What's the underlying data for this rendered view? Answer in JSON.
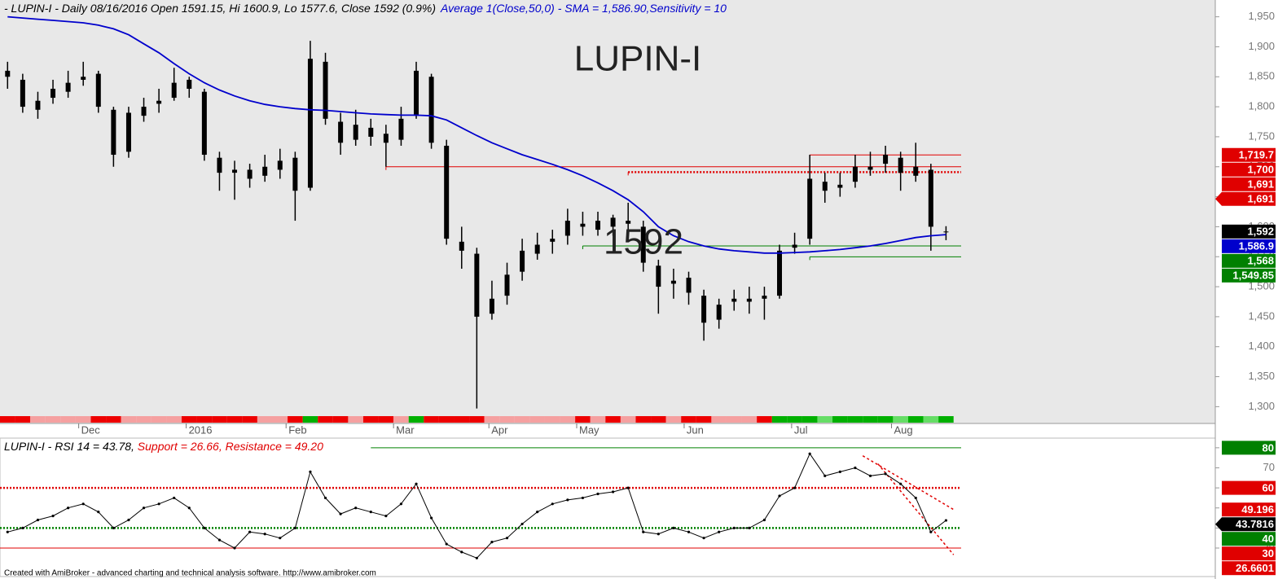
{
  "chart_data": [
    {
      "type": "candlestick",
      "header": "- LUPIN-I - Daily 08/16/2016 Open 1591.15, Hi 1600.9, Lo 1577.6, Close 1592 (0.9%)",
      "header_indicator": "Average 1(Close,50,0) - SMA = 1,586.90,Sensitivity = 10",
      "title": "LUPIN-I",
      "annotation": "1592",
      "color": "#000000",
      "open": [
        1860,
        1845,
        1795,
        1815,
        1825,
        1845,
        1855,
        1795,
        1725,
        1785,
        1805,
        1815,
        1845,
        1825,
        1715,
        1695,
        1695,
        1685,
        1695,
        1715,
        1665,
        1875,
        1775,
        1745,
        1765,
        1755,
        1745,
        1785,
        1850,
        1735,
        1575,
        1555,
        1455,
        1485,
        1525,
        1555,
        1575,
        1585,
        1605,
        1595,
        1615,
        1605,
        1600,
        1535,
        1505,
        1515,
        1485,
        1445,
        1475,
        1475,
        1485,
        1485,
        1565,
        1580,
        1675,
        1665,
        1675,
        1695,
        1705,
        1715,
        1685,
        1695,
        1591.15
      ],
      "high": [
        1875,
        1855,
        1825,
        1845,
        1860,
        1875,
        1860,
        1800,
        1800,
        1815,
        1830,
        1865,
        1850,
        1830,
        1725,
        1710,
        1705,
        1720,
        1730,
        1725,
        1910,
        1890,
        1790,
        1795,
        1780,
        1770,
        1800,
        1875,
        1855,
        1745,
        1600,
        1565,
        1510,
        1540,
        1580,
        1590,
        1595,
        1630,
        1625,
        1625,
        1620,
        1640,
        1610,
        1545,
        1530,
        1525,
        1495,
        1480,
        1495,
        1500,
        1500,
        1570,
        1590,
        1720,
        1690,
        1690,
        1720,
        1725,
        1735,
        1725,
        1740,
        1705,
        1600.9
      ],
      "low": [
        1830,
        1790,
        1780,
        1805,
        1815,
        1835,
        1790,
        1700,
        1715,
        1775,
        1790,
        1810,
        1815,
        1710,
        1660,
        1645,
        1665,
        1675,
        1680,
        1610,
        1660,
        1770,
        1720,
        1735,
        1735,
        1700,
        1735,
        1780,
        1730,
        1570,
        1530,
        1297,
        1445,
        1470,
        1510,
        1545,
        1555,
        1570,
        1585,
        1585,
        1585,
        1595,
        1525,
        1455,
        1480,
        1470,
        1410,
        1430,
        1460,
        1455,
        1445,
        1480,
        1555,
        1570,
        1640,
        1650,
        1665,
        1685,
        1690,
        1660,
        1675,
        1560,
        1577.6
      ],
      "close": [
        1850,
        1800,
        1810,
        1830,
        1840,
        1850,
        1800,
        1720,
        1790,
        1800,
        1810,
        1840,
        1830,
        1720,
        1690,
        1690,
        1680,
        1700,
        1710,
        1660,
        1880,
        1780,
        1740,
        1770,
        1750,
        1740,
        1780,
        1860,
        1740,
        1580,
        1560,
        1450,
        1480,
        1520,
        1560,
        1570,
        1580,
        1610,
        1600,
        1610,
        1600,
        1610,
        1540,
        1500,
        1510,
        1490,
        1440,
        1470,
        1480,
        1480,
        1480,
        1560,
        1570,
        1680,
        1660,
        1670,
        1700,
        1700,
        1720,
        1690,
        1700,
        1600,
        1592
      ],
      "close_label": "1,592",
      "sma": {
        "color": "#0000cc",
        "label": "1,586.9",
        "values": [
          1950,
          1948,
          1946,
          1944,
          1942,
          1940,
          1936,
          1930,
          1920,
          1905,
          1890,
          1872,
          1855,
          1840,
          1828,
          1818,
          1810,
          1804,
          1800,
          1797,
          1795,
          1794,
          1792,
          1790,
          1788,
          1787,
          1786,
          1786,
          1785,
          1778,
          1765,
          1752,
          1740,
          1730,
          1720,
          1712,
          1704,
          1695,
          1685,
          1673,
          1660,
          1645,
          1625,
          1600,
          1585,
          1575,
          1568,
          1563,
          1560,
          1558,
          1556,
          1556,
          1557,
          1558,
          1560,
          1562,
          1565,
          1568,
          1572,
          1577,
          1582,
          1585,
          1586.9
        ]
      },
      "levels": [
        {
          "value": 1719.7,
          "label": "1,719.7",
          "color": "#e00000",
          "from": 53,
          "style": "solid"
        },
        {
          "value": 1700,
          "label": "1,700",
          "color": "#e00000",
          "from": 25,
          "style": "solid"
        },
        {
          "value": 1691,
          "label": "1,691",
          "color": "#e00000",
          "from": 41,
          "style": "dotted"
        },
        {
          "value": 1568,
          "label": "1,568",
          "color": "#008000",
          "from": 38,
          "style": "solid"
        },
        {
          "value": 1549.85,
          "label": "1,549.85",
          "color": "#008000",
          "from": 53,
          "style": "solid"
        }
      ],
      "marker": {
        "value": 1691,
        "label": "1,691",
        "color": "#e00000"
      },
      "xlim": [
        -0.5,
        63
      ],
      "xticks": [
        {
          "value": 4.7,
          "label": "Dec"
        },
        {
          "value": 11.8,
          "label": "2016"
        },
        {
          "value": 18.4,
          "label": "Feb"
        },
        {
          "value": 25.5,
          "label": "Mar"
        },
        {
          "value": 31.8,
          "label": "Apr"
        },
        {
          "value": 37.6,
          "label": "May"
        },
        {
          "value": 44.7,
          "label": "Jun"
        },
        {
          "value": 51.8,
          "label": "Jul"
        },
        {
          "value": 58.4,
          "label": "Aug"
        }
      ],
      "ylim": [
        1272,
        1978
      ],
      "yticks": [
        {
          "value": 1300,
          "label": "1,300"
        },
        {
          "value": 1350,
          "label": "1,350"
        },
        {
          "value": 1400,
          "label": "1,400"
        },
        {
          "value": 1450,
          "label": "1,450"
        },
        {
          "value": 1500,
          "label": "1,500"
        },
        {
          "value": 1550,
          "label": "1,550"
        },
        {
          "value": 1600,
          "label": "1,600"
        },
        {
          "value": 1650,
          "label": "1,650"
        },
        {
          "value": 1700,
          "label": "1,700"
        },
        {
          "value": 1750,
          "label": "1,750"
        },
        {
          "value": 1800,
          "label": "1,800"
        },
        {
          "value": 1850,
          "label": "1,850"
        },
        {
          "value": 1900,
          "label": "1,900"
        },
        {
          "value": 1950,
          "label": "1,950"
        }
      ]
    },
    {
      "type": "line",
      "header": "LUPIN-I - RSI 14 = 43.78, ",
      "header_support": "Support = 26.66, ",
      "header_resistance": "Resistance = 49.20",
      "color": "#000000",
      "values": [
        38,
        40,
        44,
        46,
        50,
        52,
        48,
        40,
        44,
        50,
        52,
        55,
        50,
        40,
        34,
        30,
        38,
        37,
        35,
        40,
        68,
        55,
        47,
        50,
        48,
        46,
        52,
        62,
        45,
        32,
        28,
        25,
        33,
        35,
        42,
        48,
        52,
        54,
        55,
        57,
        58,
        60,
        38,
        37,
        40,
        38,
        35,
        38,
        40,
        40,
        44,
        56,
        60,
        77,
        66,
        68,
        70,
        66,
        67,
        62,
        55,
        38,
        43.7816
      ],
      "levels": [
        {
          "value": 80,
          "color": "#008000",
          "from": 24,
          "style": "solid"
        },
        {
          "value": 60,
          "color": "#e00000",
          "from": -0.5,
          "style": "dotted"
        },
        {
          "value": 40,
          "color": "#008000",
          "from": -0.5,
          "style": "dotted"
        },
        {
          "value": 30,
          "color": "#e00000",
          "from": -0.5,
          "style": "solid"
        }
      ],
      "trendlines": [
        {
          "color": "#e00000",
          "x": [
            56.5,
            62.5
          ],
          "values": [
            76,
            49.196
          ]
        },
        {
          "color": "#e00000",
          "x": [
            57.5,
            62.5
          ],
          "values": [
            72,
            26.6601
          ]
        }
      ],
      "xlim": [
        -0.5,
        63
      ],
      "ylim": [
        17,
        84
      ],
      "yticks": [
        30,
        40,
        50,
        60,
        70,
        80
      ]
    }
  ],
  "footer": "Created with AmiBroker - advanced charting and technical analysis software. http://www.amibroker.com"
}
